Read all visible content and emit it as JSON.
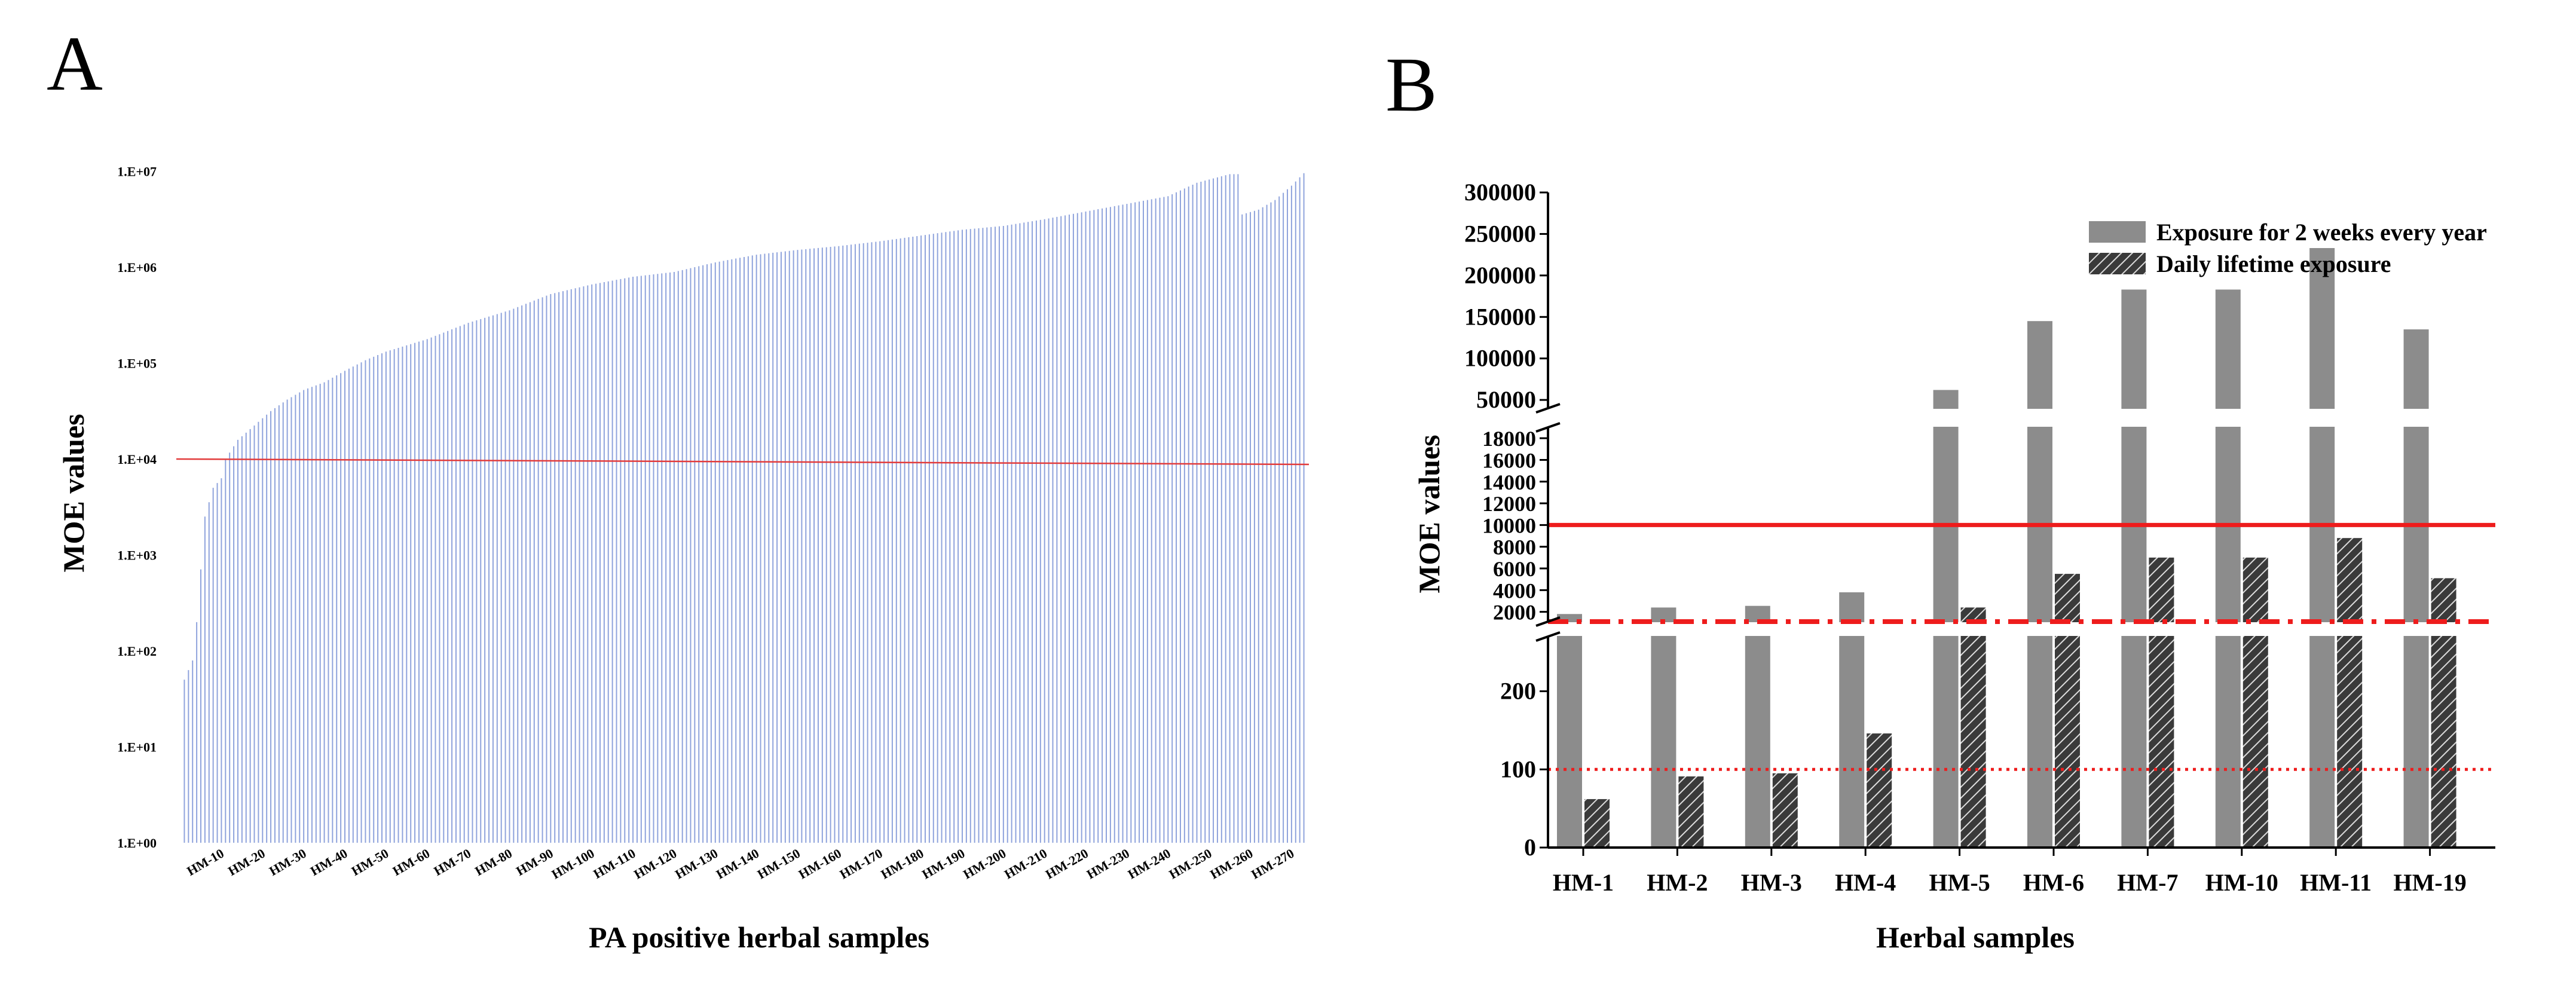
{
  "panels": {
    "a": {
      "letter": "A"
    },
    "b": {
      "letter": "B"
    }
  },
  "colors": {
    "bar_blue": "#8fa3dc",
    "threshold_red": "#e23b3b",
    "bar_gray": "#8c8c8c",
    "line_red": "#ee1c1c",
    "axis": "#000000"
  },
  "chart_data": [
    {
      "id": "panel-A",
      "type": "bar",
      "title": "",
      "xlabel": "PA positive herbal samples",
      "ylabel": "MOE values",
      "yscale": "log",
      "ylim_exp": [
        0,
        7
      ],
      "y_tick_labels": [
        "1.E+00",
        "1.E+01",
        "1.E+02",
        "1.E+03",
        "1.E+04",
        "1.E+05",
        "1.E+06",
        "1.E+07"
      ],
      "n_samples": 273,
      "x_tick_labels": [
        "HM-10",
        "HM-20",
        "HM-30",
        "HM-40",
        "HM-50",
        "HM-60",
        "HM-70",
        "HM-80",
        "HM-90",
        "HM-100",
        "HM-110",
        "HM-120",
        "HM-130",
        "HM-140",
        "HM-150",
        "HM-160",
        "HM-170",
        "HM-180",
        "HM-190",
        "HM-200",
        "HM-210",
        "HM-220",
        "HM-230",
        "HM-240",
        "HM-250",
        "HM-260",
        "HM-270"
      ],
      "log10_value_anchors": [
        [
          1,
          1.7
        ],
        [
          3,
          1.9
        ],
        [
          4,
          2.3
        ],
        [
          6,
          3.4
        ],
        [
          8,
          3.7
        ],
        [
          10,
          3.8
        ],
        [
          11,
          4.0
        ],
        [
          14,
          4.2
        ],
        [
          18,
          4.35
        ],
        [
          22,
          4.5
        ],
        [
          26,
          4.62
        ],
        [
          30,
          4.72
        ],
        [
          35,
          4.8
        ],
        [
          40,
          4.92
        ],
        [
          45,
          5.03
        ],
        [
          50,
          5.12
        ],
        [
          60,
          5.25
        ],
        [
          70,
          5.42
        ],
        [
          80,
          5.55
        ],
        [
          90,
          5.72
        ],
        [
          100,
          5.82
        ],
        [
          110,
          5.9
        ],
        [
          120,
          5.95
        ],
        [
          130,
          6.05
        ],
        [
          140,
          6.13
        ],
        [
          150,
          6.18
        ],
        [
          160,
          6.22
        ],
        [
          170,
          6.27
        ],
        [
          180,
          6.33
        ],
        [
          190,
          6.39
        ],
        [
          200,
          6.43
        ],
        [
          210,
          6.5
        ],
        [
          220,
          6.58
        ],
        [
          230,
          6.66
        ],
        [
          240,
          6.74
        ],
        [
          247,
          6.88
        ],
        [
          255,
          6.97
        ],
        [
          257,
          6.97
        ],
        [
          258,
          6.55
        ],
        [
          262,
          6.6
        ],
        [
          266,
          6.7
        ],
        [
          270,
          6.85
        ],
        [
          273,
          6.98
        ]
      ],
      "threshold": {
        "value": 10000,
        "label": "1.E+04"
      }
    },
    {
      "id": "panel-B",
      "type": "bar",
      "title": "",
      "xlabel": "Herbal samples",
      "ylabel": "MOE values",
      "categories": [
        "HM-1",
        "HM-2",
        "HM-3",
        "HM-4",
        "HM-5",
        "HM-6",
        "HM-7",
        "HM-10",
        "HM-11",
        "HM-19"
      ],
      "series": [
        {
          "name": "Exposure for 2 weeks every year",
          "values": [
            1800,
            2400,
            2550,
            3800,
            62000,
            145000,
            183000,
            183000,
            233000,
            135000
          ]
        },
        {
          "name": "Daily lifetime exposure",
          "values": [
            62,
            91,
            95,
            146,
            2400,
            5500,
            7000,
            7000,
            8800,
            5100
          ]
        }
      ],
      "broken_y_axis": {
        "segments": [
          {
            "range": [
              0,
              270
            ],
            "ticks": [
              "0",
              "100",
              "200"
            ]
          },
          {
            "range": [
              1100,
              19000
            ],
            "ticks": [
              "2000",
              "4000",
              "6000",
              "8000",
              "10000",
              "12000",
              "14000",
              "16000",
              "18000"
            ]
          },
          {
            "range": [
              40000,
              300000
            ],
            "ticks": [
              "50000",
              "100000",
              "150000",
              "200000",
              "250000",
              "300000"
            ]
          }
        ]
      },
      "reference_lines": [
        {
          "value": 10000,
          "style": "solid"
        },
        {
          "value": 1000,
          "style": "dash-dot"
        },
        {
          "value": 100,
          "style": "dotted"
        }
      ],
      "legend_position": "top-right"
    }
  ]
}
